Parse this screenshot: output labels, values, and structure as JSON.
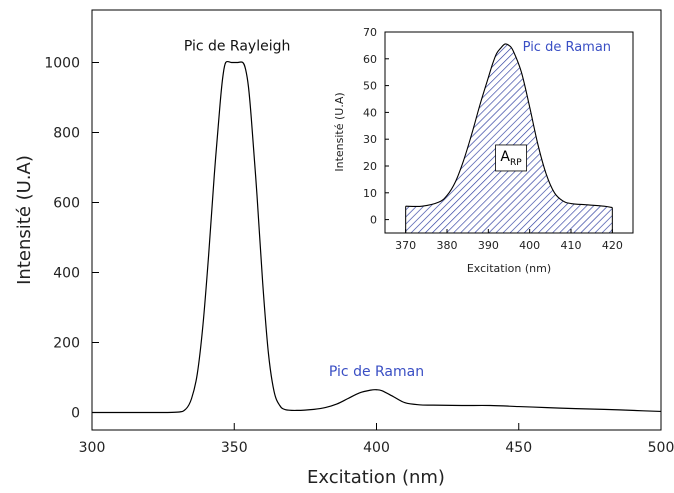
{
  "colors": {
    "line": "#000000",
    "accent_blue": "#3a4fc4",
    "hatch": "#2a3a9e"
  },
  "chart_data": [
    {
      "id": "main",
      "type": "line",
      "xlabel": "Excitation (nm)",
      "ylabel": "Intensité (U.A)",
      "xlim": [
        300,
        500
      ],
      "ylim": [
        -50,
        1150
      ],
      "xticks": [
        300,
        350,
        400,
        450,
        500
      ],
      "yticks": [
        0,
        200,
        400,
        600,
        800,
        1000
      ],
      "series": [
        {
          "x": [
            300,
            320,
            330,
            333,
            335,
            337,
            339,
            341,
            343,
            345,
            346,
            347,
            349,
            351,
            353,
            354,
            355,
            356,
            358,
            360,
            362,
            364,
            366,
            368,
            372,
            378,
            382,
            386,
            390,
            394,
            398,
            400,
            402,
            406,
            410,
            415,
            420,
            430,
            440,
            450,
            460,
            470,
            480,
            490,
            500
          ],
          "y": [
            0,
            0,
            1,
            10,
            40,
            110,
            250,
            450,
            680,
            880,
            960,
            1000,
            1000,
            1000,
            1000,
            980,
            930,
            840,
            620,
            370,
            170,
            60,
            20,
            8,
            6,
            9,
            14,
            24,
            40,
            56,
            64,
            65,
            62,
            45,
            28,
            22,
            21,
            20,
            20,
            17,
            14,
            11,
            9,
            6,
            3
          ]
        }
      ],
      "annotations": [
        {
          "text": "Pic de Rayleigh",
          "x": 351,
          "y": 1035,
          "color": "black"
        },
        {
          "text": "Pic de Raman",
          "x": 400,
          "y": 105,
          "color": "blue"
        }
      ]
    },
    {
      "id": "inset",
      "type": "area",
      "xlabel": "Excitation (nm)",
      "ylabel": "Intensité (U.A)",
      "xlim": [
        365,
        425
      ],
      "ylim": [
        -5,
        70
      ],
      "xticks": [
        370,
        380,
        390,
        400,
        410,
        420
      ],
      "yticks": [
        0,
        10,
        20,
        30,
        40,
        50,
        60,
        70
      ],
      "fill": "diagonal-hatch",
      "series": [
        {
          "x": [
            370,
            374,
            378,
            380,
            382,
            384,
            386,
            388,
            390,
            391,
            392,
            393,
            394,
            395,
            396,
            398,
            400,
            402,
            404,
            406,
            408,
            410,
            414,
            418,
            420
          ],
          "y": [
            5,
            5,
            6.5,
            9,
            14,
            22,
            32,
            43,
            53,
            58,
            62,
            64,
            65.5,
            65,
            63,
            55,
            42,
            28,
            17,
            10,
            7,
            6,
            5.5,
            5,
            4.5
          ]
        }
      ],
      "annotations": [
        {
          "text": "Pic de Raman",
          "x": 409,
          "y": 63,
          "color": "blue"
        }
      ],
      "area_label": {
        "main": "A",
        "subscript": "RP",
        "x": 395.5,
        "y": 23
      }
    }
  ]
}
